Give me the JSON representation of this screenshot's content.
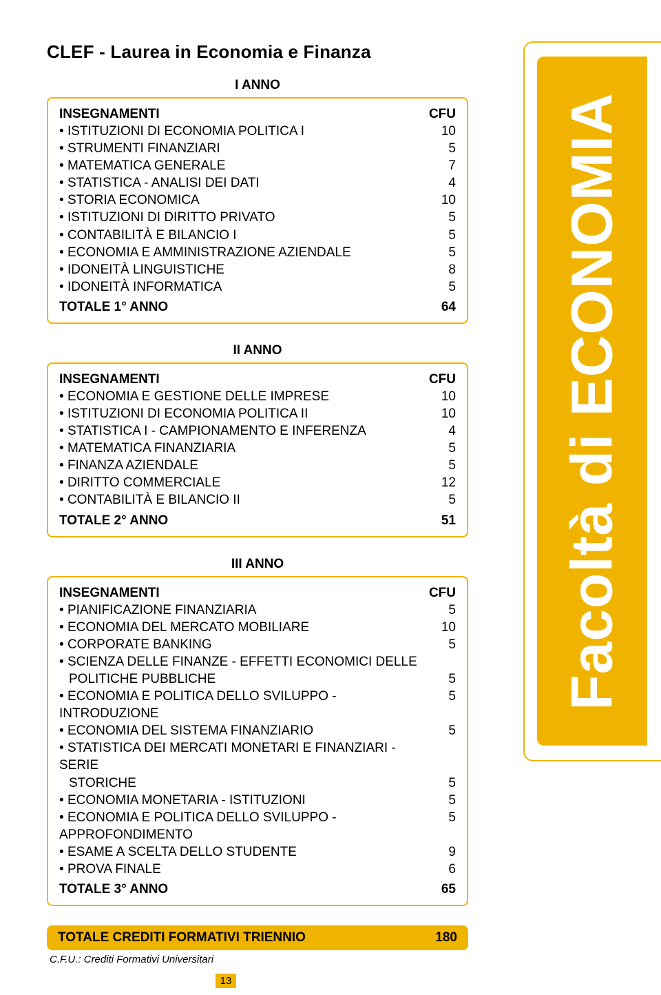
{
  "colors": {
    "accent": "#f0b400",
    "text": "#000000",
    "background": "#ffffff",
    "sidebar_text": "#ffffff"
  },
  "title": "CLEF - Laurea in Economia e Finanza",
  "sidebar_label": "Facoltà di ECONOMIA",
  "page_number": "13",
  "footnote": "C.F.U.: Crediti Formativi Universitari",
  "grand_total": {
    "label": "TOTALE CREDITI FORMATIVI TRIENNIO",
    "value": "180"
  },
  "year1": {
    "heading": "I ANNO",
    "header": {
      "label": "INSEGNAMENTI",
      "value": "CFU"
    },
    "rows": [
      {
        "label": "ISTITUZIONI DI ECONOMIA POLITICA I",
        "value": "10"
      },
      {
        "label": "STRUMENTI FINANZIARI",
        "value": "5"
      },
      {
        "label": "MATEMATICA GENERALE",
        "value": "7"
      },
      {
        "label": "STATISTICA - ANALISI DEI DATI",
        "value": "4"
      },
      {
        "label": "STORIA ECONOMICA",
        "value": "10"
      },
      {
        "label": "ISTITUZIONI DI DIRITTO PRIVATO",
        "value": "5"
      },
      {
        "label": "CONTABILITÀ E BILANCIO I",
        "value": "5"
      },
      {
        "label": "ECONOMIA E AMMINISTRAZIONE AZIENDALE",
        "value": "5"
      },
      {
        "label": "IDONEITÀ LINGUISTICHE",
        "value": "8"
      },
      {
        "label": "IDONEITÀ INFORMATICA",
        "value": "5"
      }
    ],
    "total": {
      "label": "TOTALE 1° ANNO",
      "value": "64"
    }
  },
  "year2": {
    "heading": "II ANNO",
    "header": {
      "label": "INSEGNAMENTI",
      "value": "CFU"
    },
    "rows": [
      {
        "label": "ECONOMIA E GESTIONE DELLE IMPRESE",
        "value": "10"
      },
      {
        "label": "ISTITUZIONI DI ECONOMIA POLITICA II",
        "value": "10"
      },
      {
        "label": "STATISTICA I - CAMPIONAMENTO E INFERENZA",
        "value": "4"
      },
      {
        "label": "MATEMATICA FINANZIARIA",
        "value": "5"
      },
      {
        "label": "FINANZA AZIENDALE",
        "value": "5"
      },
      {
        "label": "DIRITTO COMMERCIALE",
        "value": "12"
      },
      {
        "label": "CONTABILITÀ E BILANCIO II",
        "value": "5"
      }
    ],
    "total": {
      "label": "TOTALE 2° ANNO",
      "value": "51"
    }
  },
  "year3": {
    "heading": "III ANNO",
    "header": {
      "label": "INSEGNAMENTI",
      "value": "CFU"
    },
    "rows": [
      {
        "label": "PIANIFICAZIONE FINANZIARIA",
        "value": "5"
      },
      {
        "label": "ECONOMIA DEL MERCATO MOBILIARE",
        "value": "10"
      },
      {
        "label": "CORPORATE BANKING",
        "value": "5"
      },
      {
        "label": "SCIENZA DELLE FINANZE - EFFETTI ECONOMICI DELLE",
        "value": "",
        "cont": true
      },
      {
        "label": "POLITICHE PUBBLICHE",
        "value": "5",
        "indent": true
      },
      {
        "label": "ECONOMIA E POLITICA DELLO SVILUPPO - INTRODUZIONE",
        "value": "5"
      },
      {
        "label": "ECONOMIA DEL SISTEMA FINANZIARIO",
        "value": "5"
      },
      {
        "label": "STATISTICA DEI  MERCATI  MONETARI E FINANZIARI - SERIE",
        "value": "",
        "cont": true
      },
      {
        "label": "STORICHE",
        "value": "5",
        "indent": true
      },
      {
        "label": "ECONOMIA  MONETARIA - ISTITUZIONI",
        "value": "5"
      },
      {
        "label": "ECONOMIA E POLITICA DELLO SVILUPPO - APPROFONDIMENTO",
        "value": "5"
      },
      {
        "label": "ESAME A SCELTA DELLO STUDENTE",
        "value": "9"
      },
      {
        "label": "PROVA FINALE",
        "value": "6"
      }
    ],
    "total": {
      "label": "TOTALE 3° ANNO",
      "value": "65"
    }
  }
}
